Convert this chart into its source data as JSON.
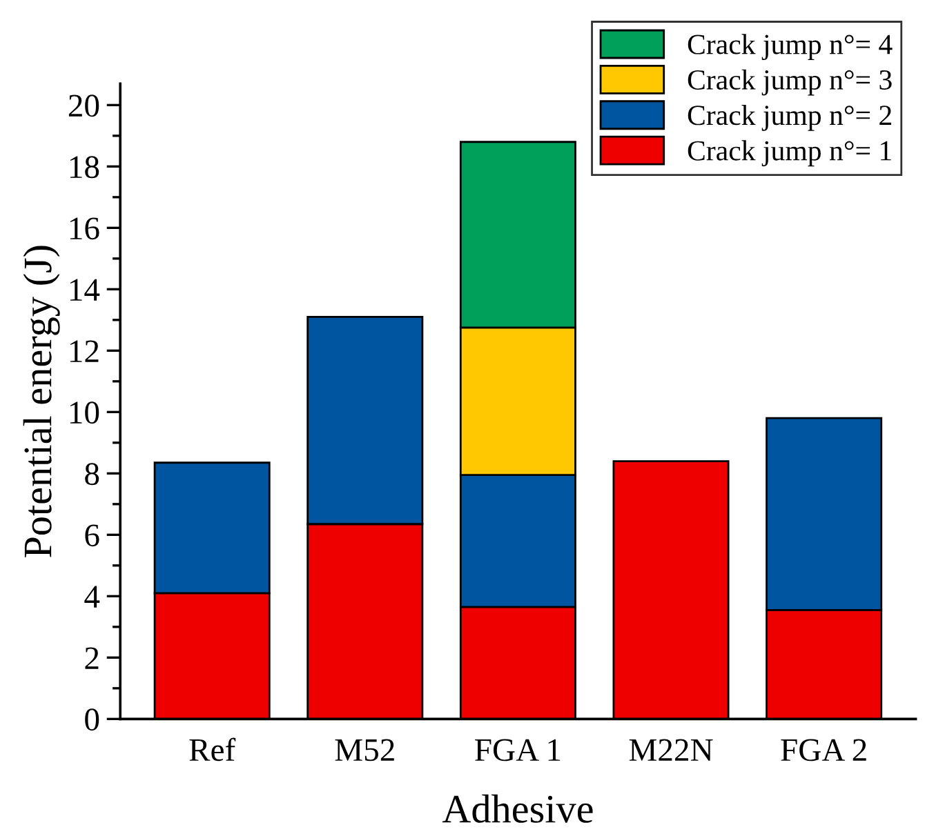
{
  "chart_data": {
    "type": "bar",
    "stacked": true,
    "xlabel": "Adhesive",
    "ylabel": "Potential energy (J)",
    "categories": [
      "Ref",
      "M52",
      "FGA 1",
      "M22N",
      "FGA 2"
    ],
    "series": [
      {
        "name": "Crack jump n°= 1",
        "color": "#ee0000",
        "values": [
          4.1,
          6.35,
          3.65,
          8.4,
          3.55
        ]
      },
      {
        "name": "Crack jump n°= 2",
        "color": "#0055a0",
        "values": [
          4.25,
          6.75,
          4.3,
          null,
          6.25
        ]
      },
      {
        "name": "Crack jump n°= 3",
        "color": "#ffc800",
        "values": [
          null,
          null,
          4.8,
          null,
          null
        ]
      },
      {
        "name": "Crack jump n°= 4",
        "color": "#00a05a",
        "values": [
          null,
          null,
          6.05,
          null,
          null
        ]
      }
    ],
    "ylim": [
      0,
      20.7
    ],
    "yticks": [
      0,
      2,
      4,
      6,
      8,
      10,
      12,
      14,
      16,
      18,
      20
    ],
    "grid": false,
    "legend": "top right"
  }
}
